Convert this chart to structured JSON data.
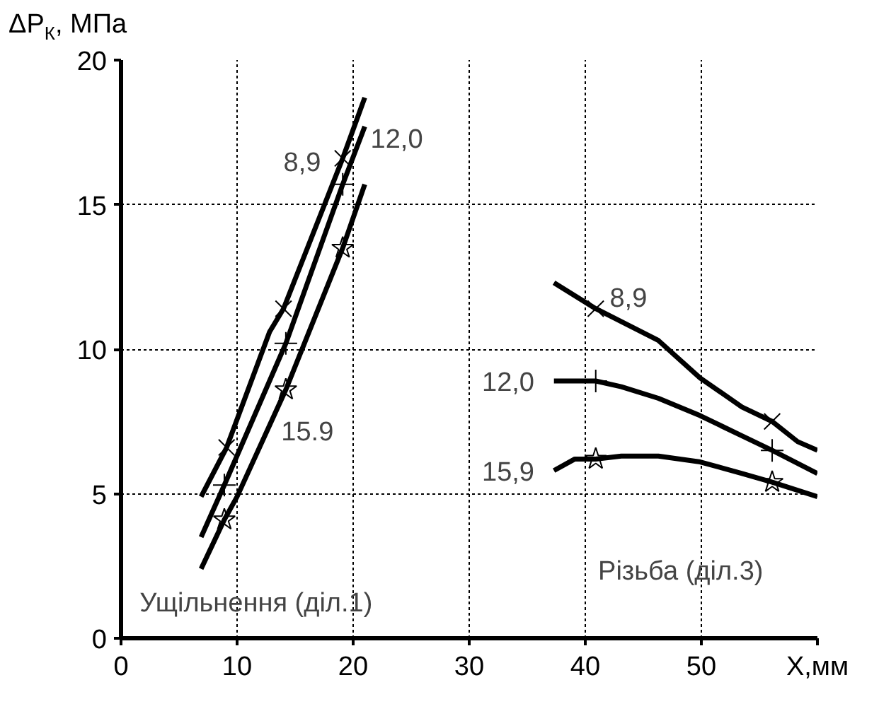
{
  "chart_data": {
    "type": "line",
    "ylabel": "ΔP$_{К}$, МПа",
    "xlabel": "X,мм",
    "xlim": [
      0,
      60
    ],
    "ylim": [
      0,
      20
    ],
    "xticks": [
      0,
      10,
      20,
      30,
      40,
      50,
      {
        "value": 60,
        "label": null
      }
    ],
    "yticks": [
      0,
      5,
      10,
      15,
      20
    ],
    "grid": true,
    "line_style": "solid",
    "marker": "none",
    "series": [
      {
        "type": "line",
        "color": "#000000",
        "x": [
          6.9,
          9.1,
          12.8,
          14.0,
          19.1,
          21.0
        ],
        "values": [
          4.9,
          6.6,
          10.6,
          11.4,
          16.6,
          18.7
        ]
      },
      {
        "type": "line",
        "color": "#000000",
        "x": [
          6.9,
          8.9,
          14.2,
          19.1,
          21.0
        ],
        "values": [
          3.5,
          5.3,
          10.2,
          15.7,
          17.7
        ]
      },
      {
        "type": "line",
        "color": "#000000",
        "x": [
          6.9,
          8.9,
          10.0,
          14.2,
          19.1,
          21.0
        ],
        "values": [
          2.4,
          4.1,
          4.9,
          8.6,
          13.5,
          15.7
        ]
      },
      {
        "type": "line",
        "color": "#000000",
        "x": [
          37.3,
          40.9,
          46.3,
          49.9,
          53.5,
          56.1,
          58.3,
          60.0
        ],
        "values": [
          12.3,
          11.4,
          10.3,
          9.0,
          8.0,
          7.5,
          6.8,
          6.5
        ]
      },
      {
        "type": "line",
        "color": "#000000",
        "x": [
          37.3,
          40.9,
          43.1,
          46.3,
          49.9,
          53.5,
          56.1,
          60.0
        ],
        "values": [
          8.9,
          8.9,
          8.7,
          8.3,
          7.7,
          7.0,
          6.5,
          5.7
        ]
      },
      {
        "type": "line",
        "color": "#000000",
        "x": [
          37.3,
          39.1,
          40.9,
          43.1,
          46.3,
          49.9,
          53.5,
          56.1,
          60.0
        ],
        "values": [
          5.8,
          6.2,
          6.2,
          6.3,
          6.3,
          6.1,
          5.7,
          5.4,
          4.9
        ]
      },
      {
        "type": "scatter",
        "marker": "x",
        "color": "#000000",
        "x": [
          9.1,
          14.0,
          19.1,
          40.9,
          56.1
        ],
        "values": [
          6.6,
          11.4,
          16.6,
          11.4,
          7.5
        ]
      },
      {
        "type": "scatter",
        "marker": "cross",
        "color": "#000000",
        "x": [
          8.9,
          14.2,
          19.1,
          40.9,
          56.1
        ],
        "values": [
          5.3,
          10.2,
          15.7,
          8.9,
          6.5
        ]
      },
      {
        "type": "scatter",
        "marker": "star",
        "color": "#000000",
        "x": [
          8.9,
          14.2,
          19.1,
          40.9,
          56.1
        ],
        "values": [
          4.1,
          8.6,
          13.5,
          6.2,
          5.4
        ]
      }
    ],
    "annotations": [
      "8,9",
      "12,0",
      "15.9",
      "8,9",
      "12,0",
      "15,9",
      "Ущільнення (діл.1)",
      "Різьба (діл.3)"
    ]
  }
}
